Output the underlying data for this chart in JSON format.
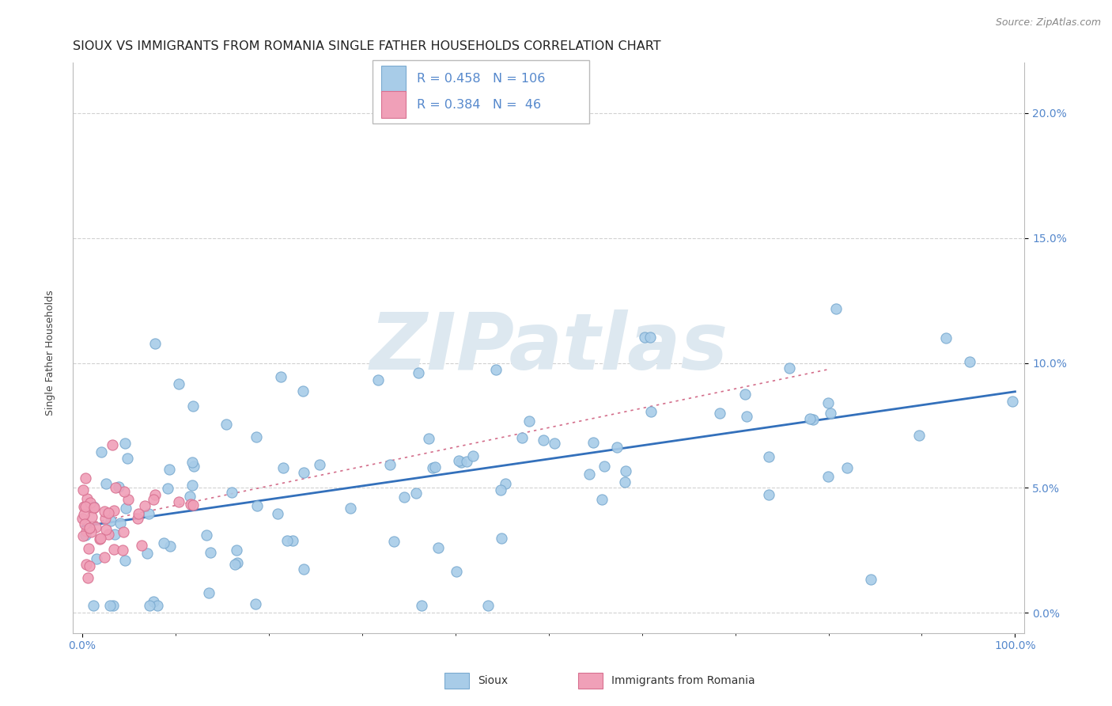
{
  "title": "SIOUX VS IMMIGRANTS FROM ROMANIA SINGLE FATHER HOUSEHOLDS CORRELATION CHART",
  "source": "Source: ZipAtlas.com",
  "ylabel": "Single Father Households",
  "legend_label1": "Sioux",
  "legend_label2": "Immigrants from Romania",
  "r1": 0.458,
  "n1": 106,
  "r2": 0.384,
  "n2": 46,
  "color_sioux": "#a8cce8",
  "color_romania": "#f0a0b8",
  "color_sioux_edge": "#7aaad0",
  "color_romania_edge": "#d87090",
  "trendline_sioux": "#3370bb",
  "trendline_romania": "#cc5577",
  "watermark_color": "#d8e8f0",
  "background_color": "#ffffff",
  "ytick_labels": [
    "0.0%",
    "5.0%",
    "10.0%",
    "15.0%",
    "20.0%"
  ],
  "ytick_values": [
    0,
    5,
    10,
    15,
    20
  ],
  "ytick_color": "#5588cc",
  "xtick_color": "#5588cc",
  "grid_color": "#cccccc",
  "title_fontsize": 11.5,
  "axis_label_fontsize": 9,
  "tick_fontsize": 10,
  "source_fontsize": 9
}
